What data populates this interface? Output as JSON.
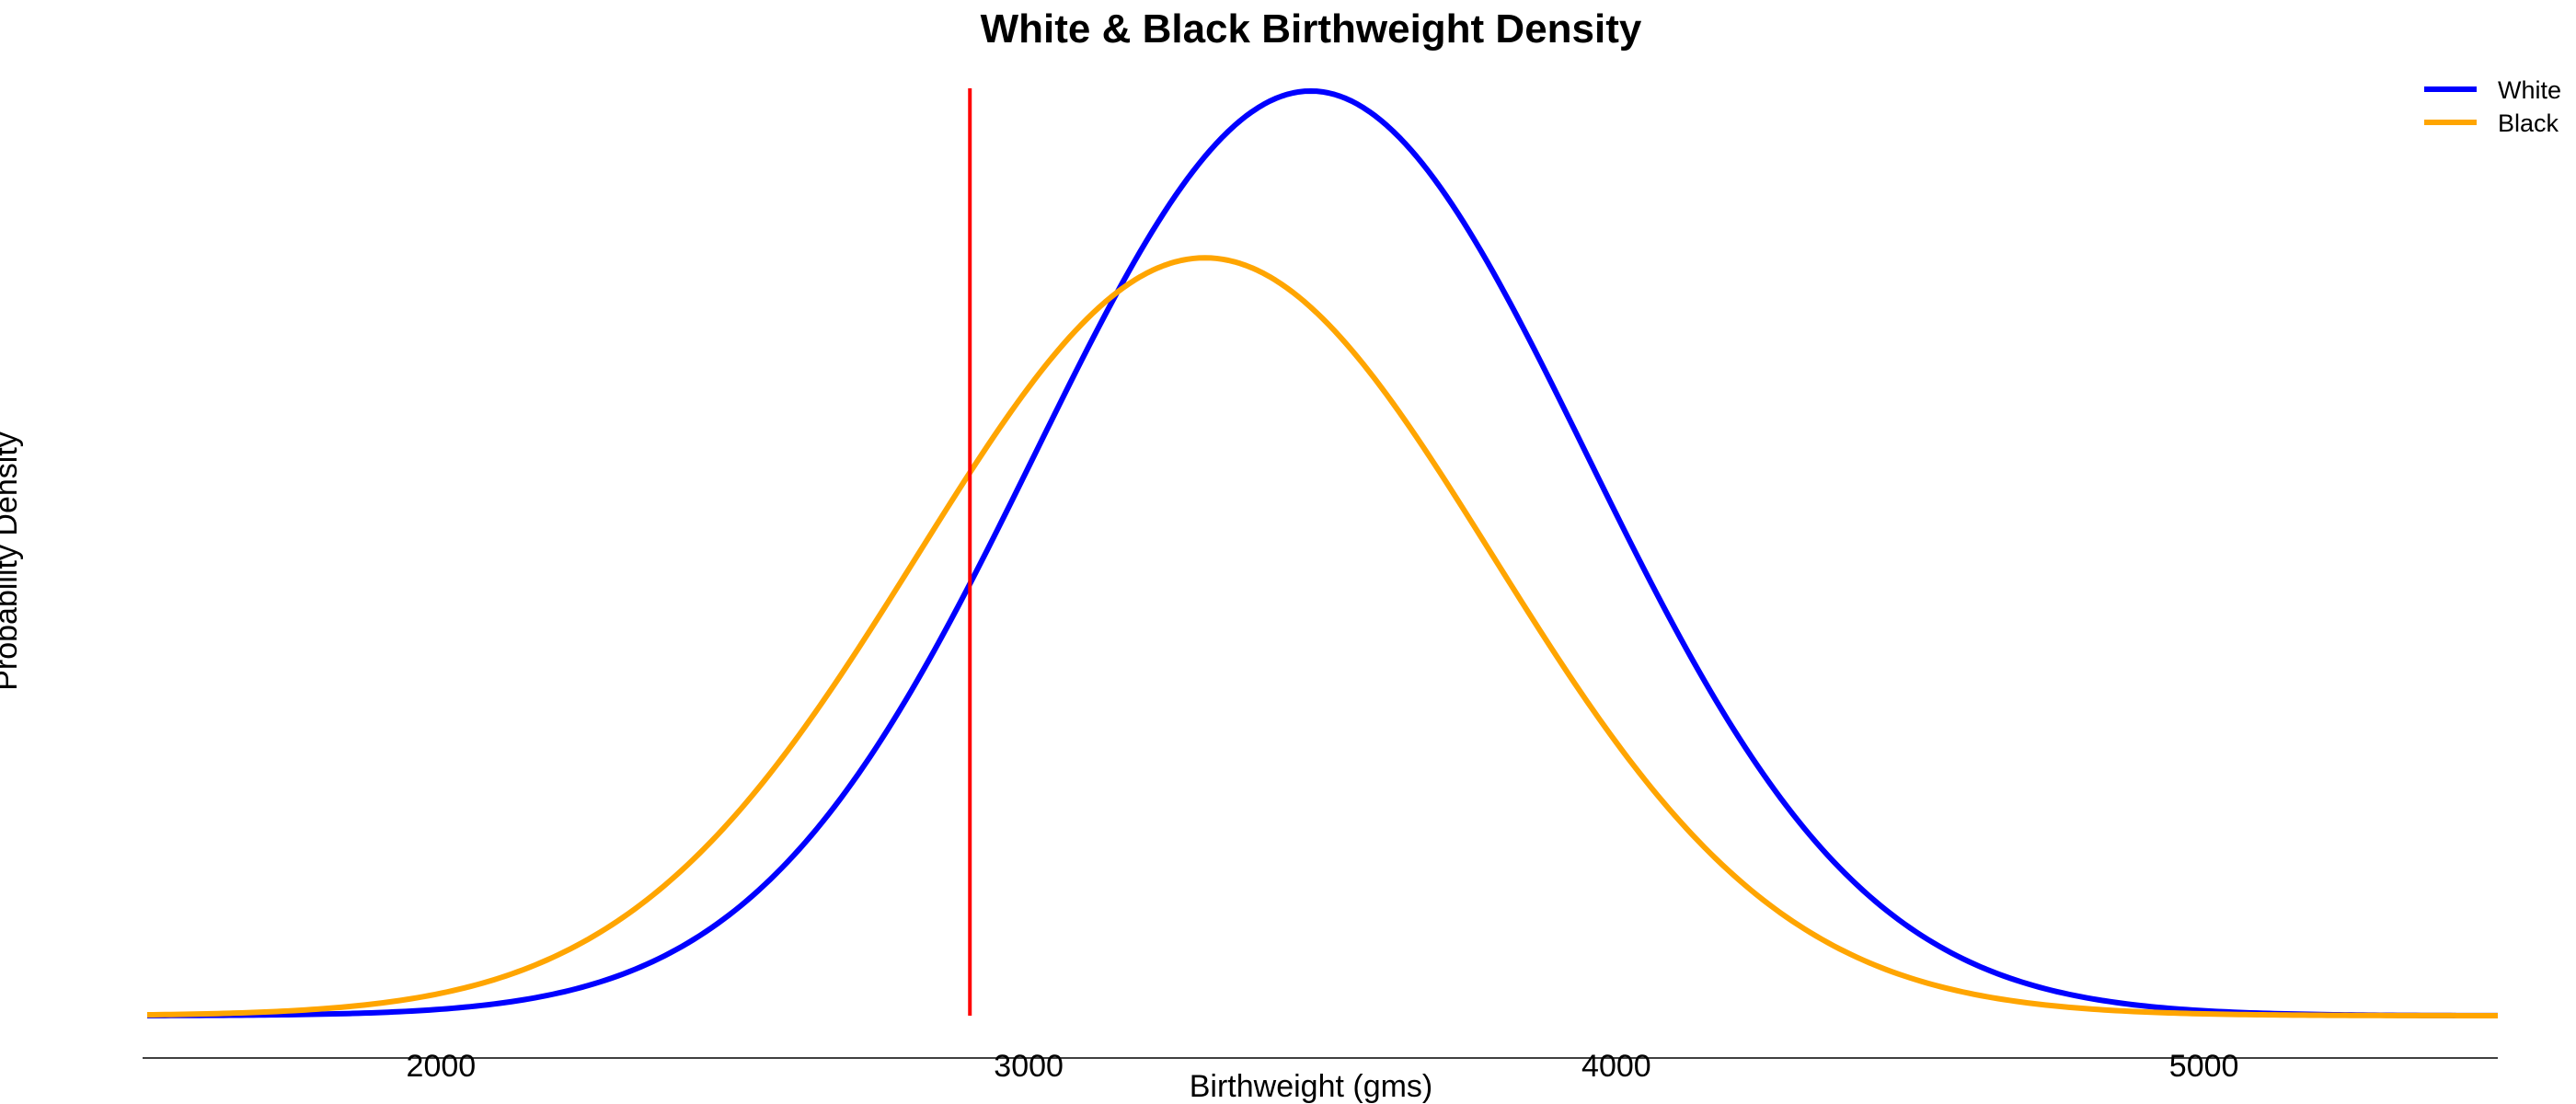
{
  "chart_data": {
    "type": "line",
    "title": "White & Black Birthweight Density",
    "xlabel": "Birthweight (gms)",
    "ylabel": "Probability Density",
    "xlim": [
      1500,
      5500
    ],
    "xticks": [
      2000,
      3000,
      4000,
      5000
    ],
    "yaxis_ticks_shown": false,
    "grid": false,
    "legend": "top-right",
    "reference_line": {
      "x": 2900,
      "color": "#ff0000"
    },
    "series": [
      {
        "name": "White",
        "color": "#0000ff",
        "model": {
          "mean": 3480,
          "sd": 470
        },
        "x": [
          1500,
          1600,
          1700,
          1800,
          1900,
          2000,
          2100,
          2200,
          2300,
          2400,
          2500,
          2600,
          2700,
          2800,
          2900,
          3000,
          3100,
          3200,
          3300,
          3400,
          3480,
          3500,
          3600,
          3700,
          3800,
          3900,
          4000,
          4100,
          4200,
          4300,
          4400,
          4500,
          4600,
          4700,
          4800,
          4900,
          5000,
          5200,
          5500
        ],
        "y": [
          0.0,
          0.0001,
          0.0002,
          0.0004,
          0.0007,
          0.0011,
          0.0017,
          0.0026,
          0.0039,
          0.0056,
          0.0078,
          0.0106,
          0.0141,
          0.0182,
          0.0229,
          0.0282,
          0.0338,
          0.0394,
          0.0446,
          0.049,
          0.051,
          0.051,
          0.0493,
          0.0457,
          0.0409,
          0.0352,
          0.0292,
          0.0233,
          0.0179,
          0.0133,
          0.0095,
          0.0065,
          0.0043,
          0.0027,
          0.0016,
          0.0009,
          0.0005,
          0.0001,
          0.0
        ]
      },
      {
        "name": "Black",
        "color": "#ffa500",
        "model": {
          "mean": 3300,
          "sd": 490
        },
        "x": [
          1500,
          1600,
          1700,
          1800,
          1900,
          2000,
          2100,
          2200,
          2300,
          2400,
          2500,
          2600,
          2700,
          2800,
          2900,
          3000,
          3100,
          3200,
          3300,
          3400,
          3500,
          3600,
          3700,
          3800,
          3900,
          4000,
          4100,
          4200,
          4300,
          4400,
          4500,
          4600,
          4700,
          4800,
          4900,
          5000,
          5200,
          5500
        ],
        "y": [
          0.0,
          0.0002,
          0.0004,
          0.0007,
          0.0012,
          0.0019,
          0.0029,
          0.0044,
          0.0063,
          0.0087,
          0.0117,
          0.0153,
          0.0193,
          0.0237,
          0.0282,
          0.0327,
          0.0368,
          0.04,
          0.0418,
          0.0418,
          0.04,
          0.0368,
          0.0327,
          0.0282,
          0.0237,
          0.0193,
          0.0153,
          0.0117,
          0.0087,
          0.0063,
          0.0044,
          0.0029,
          0.0019,
          0.0012,
          0.0007,
          0.0004,
          0.0001,
          0.0
        ]
      }
    ]
  }
}
